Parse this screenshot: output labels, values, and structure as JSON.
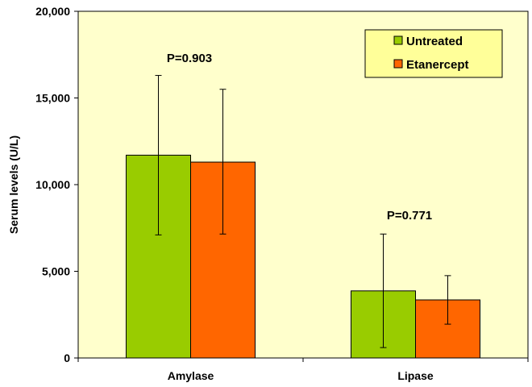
{
  "chart_data": {
    "type": "bar",
    "categories": [
      "Amylase",
      "Lipase"
    ],
    "series": [
      {
        "name": "Untreated",
        "values": [
          11700,
          3870
        ],
        "error_low": [
          7100,
          600
        ],
        "error_high": [
          16300,
          7150
        ],
        "color": "#99cc00"
      },
      {
        "name": "Etanercept",
        "values": [
          11300,
          3350
        ],
        "error_low": [
          7150,
          1950
        ],
        "error_high": [
          15500,
          4750
        ],
        "color": "#ff6600"
      }
    ],
    "ylabel": "Serum levels (U/L)",
    "ylim": [
      0,
      20000
    ],
    "yticks": [
      0,
      5000,
      10000,
      15000,
      20000
    ],
    "ytick_labels": [
      "0",
      "5,000",
      "10,000",
      "15,000",
      "20,000"
    ],
    "annotations": [
      "P=0.903",
      "P=0.771"
    ],
    "legend": {
      "placement": "top-right",
      "entries": [
        "Untreated",
        "Etanercept"
      ]
    },
    "plot_background": "#ffffcc",
    "grid": false
  }
}
